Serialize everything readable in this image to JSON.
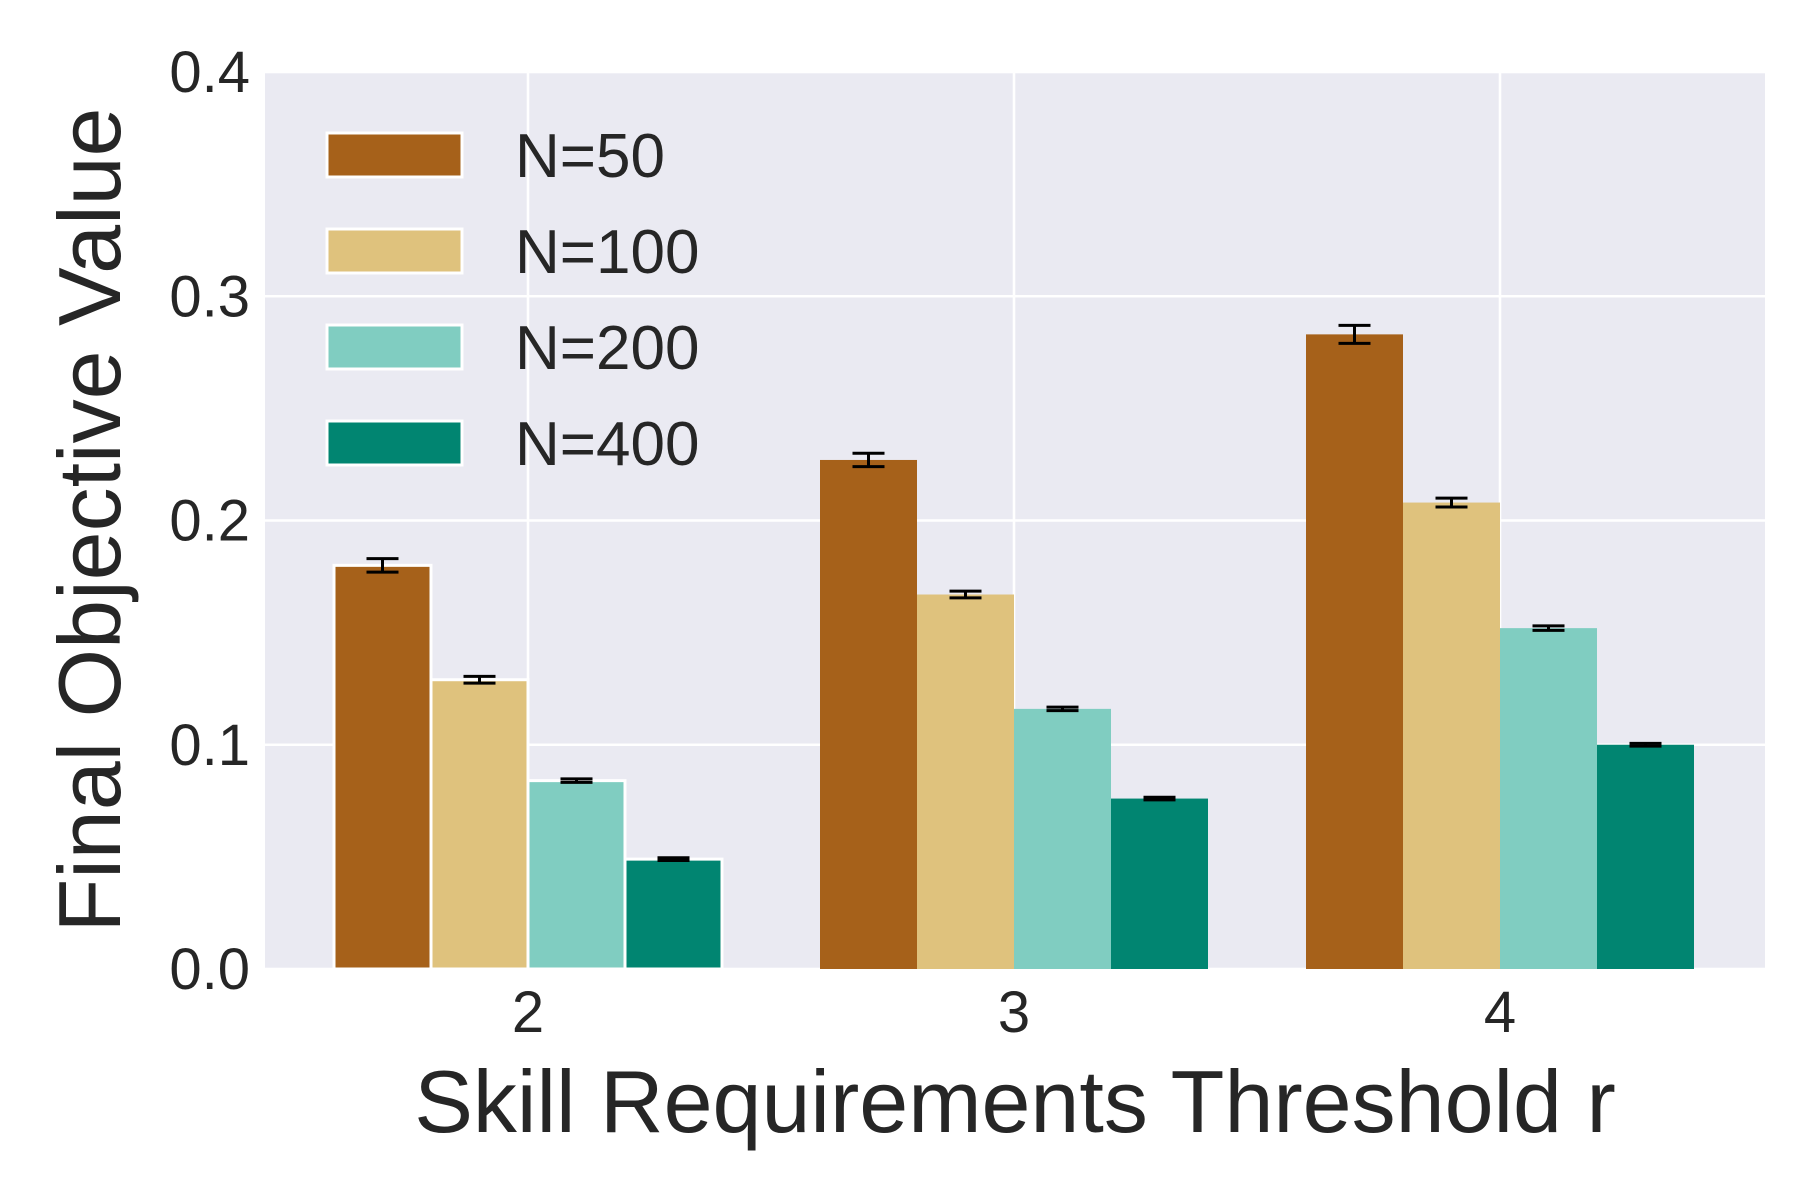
{
  "chart_data": {
    "type": "bar",
    "title": "",
    "xlabel": "Skill Requirements Threshold r",
    "ylabel": "Final Objective Value",
    "categories": [
      "2",
      "3",
      "4"
    ],
    "ylim": [
      0,
      0.4
    ],
    "yticks": [
      "0.0",
      "0.1",
      "0.2",
      "0.3",
      "0.4"
    ],
    "grid": true,
    "legend_position": "top-left",
    "series": [
      {
        "name": "N=50",
        "color": "#a6611a",
        "values": [
          0.18,
          0.227,
          0.283
        ],
        "errors": [
          0.003,
          0.003,
          0.004
        ]
      },
      {
        "name": "N=100",
        "color": "#dfc27d",
        "values": [
          0.129,
          0.167,
          0.208
        ],
        "errors": [
          0.0015,
          0.0015,
          0.002
        ]
      },
      {
        "name": "N=200",
        "color": "#80cdc1",
        "values": [
          0.084,
          0.116,
          0.152
        ],
        "errors": [
          0.0008,
          0.0008,
          0.001
        ]
      },
      {
        "name": "N=400",
        "color": "#018571",
        "values": [
          0.049,
          0.076,
          0.1
        ],
        "errors": [
          0.0006,
          0.0006,
          0.0006
        ]
      }
    ],
    "colors": {
      "plot_background": "#eaeaf2",
      "grid": "#ffffff",
      "error_bar": "#000000"
    }
  }
}
